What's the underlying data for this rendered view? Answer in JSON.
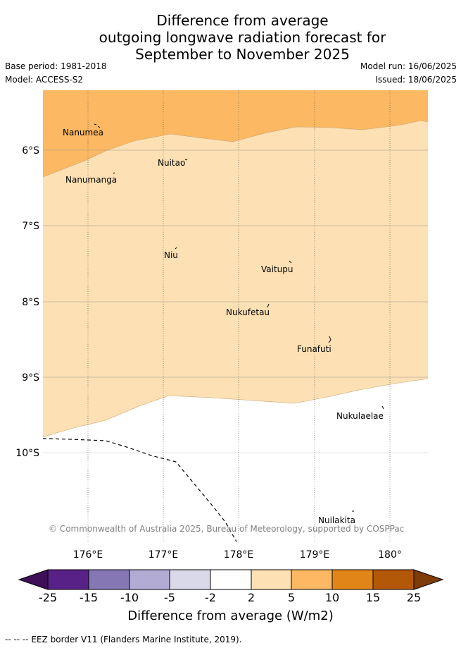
{
  "title_lines": [
    "Difference from average",
    "outgoing longwave radiation forecast for",
    "September to November 2025"
  ],
  "base_period": "Base period: 1981-2018",
  "model": "Model: ACCESS-S2",
  "model_run": "Model run: 16/06/2025",
  "issued": "Issued: 18/06/2025",
  "map": {
    "lat_labels": [
      "6°S",
      "7°S",
      "8°S",
      "9°S",
      "10°S"
    ],
    "lon_labels": [
      "176°E",
      "177°E",
      "178°E",
      "179°E",
      "180°"
    ],
    "islands": [
      "Nanumea",
      "Nuitao",
      "Nanumanga",
      "Niu",
      "Vaitupu",
      "Nukufetau",
      "Funafuti",
      "Nukulaelae",
      "Nuilakita"
    ],
    "copyright": "© Commonwealth of Australia 2025, Bureau of Meteorology, supported by COSPPac",
    "colors": {
      "band_5_10": "#fcb862",
      "band_2_5": "#fde0b3",
      "neutral": "#ffffff"
    }
  },
  "colorbar": {
    "label": "Difference from average (W/m2)",
    "ticks": [
      "-25",
      "-15",
      "-10",
      "-5",
      "-2",
      "2",
      "5",
      "10",
      "15",
      "25"
    ],
    "colors": [
      "#3f0f57",
      "#582187",
      "#8577b3",
      "#b2abd3",
      "#d9d9ea",
      "#ffffff",
      "#fde0b3",
      "#fcb862",
      "#e18518",
      "#b35807",
      "#7f3b08"
    ]
  },
  "eez_note": "--  --  -- EEZ border V11 (Flanders Marine Institute, 2019)."
}
